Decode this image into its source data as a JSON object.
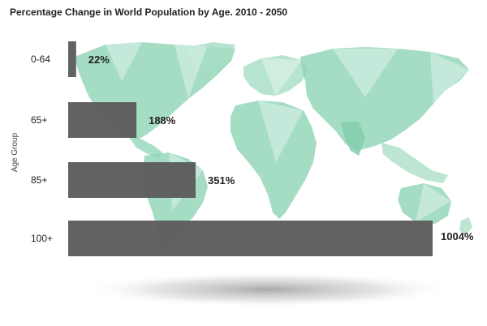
{
  "colors": {
    "bar": "#5a5a5a",
    "map": "#8fd4b6",
    "text": "#222222",
    "shadow": "#9a9a9a"
  },
  "chart_data": {
    "type": "bar",
    "orientation": "horizontal",
    "title": "Percentage Change in World Population by Age. 2010 - 2050",
    "ylabel": "Age Group",
    "xlabel": "",
    "categories": [
      "0-64",
      "65+",
      "85+",
      "100+"
    ],
    "values": [
      22,
      188,
      351,
      1004
    ],
    "value_labels": [
      "22%",
      "188%",
      "351%",
      "1004%"
    ],
    "xlim": [
      0,
      1004
    ],
    "grid": false,
    "legend": "none",
    "background": "world map"
  }
}
